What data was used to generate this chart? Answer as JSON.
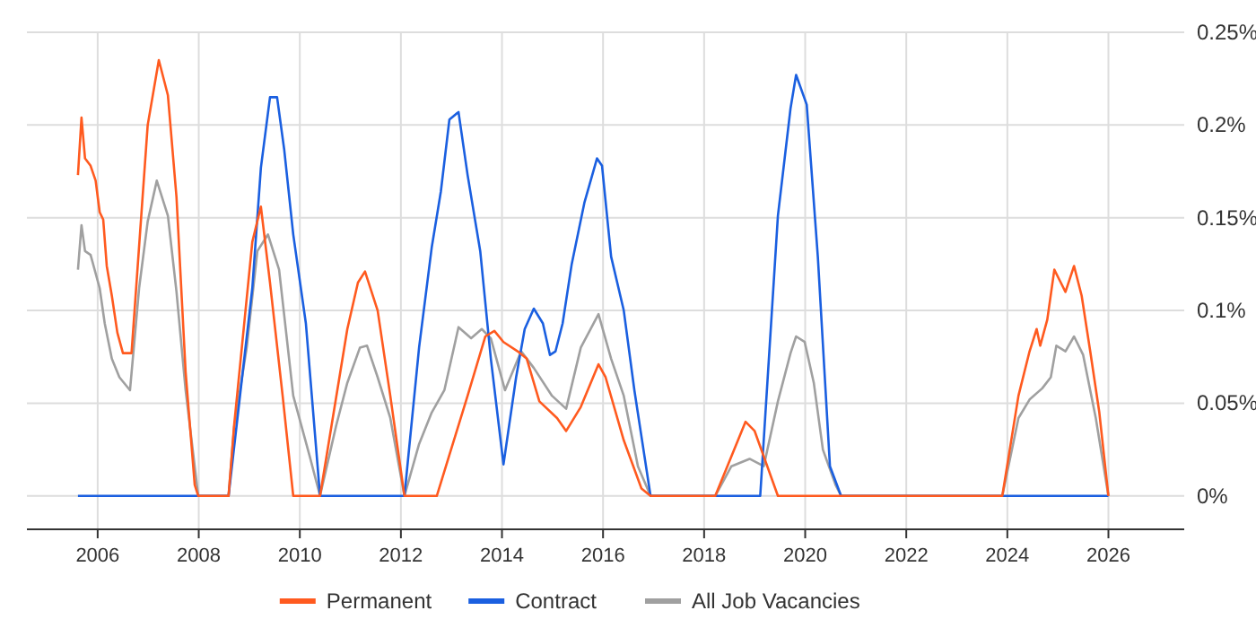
{
  "chart_data": {
    "type": "line",
    "xlim": [
      2004.6,
      2027.5
    ],
    "xticks": [
      2006,
      2008,
      2010,
      2012,
      2014,
      2016,
      2018,
      2020,
      2022,
      2024,
      2026
    ],
    "ylim": [
      -0.018,
      0.25
    ],
    "yticks": [
      {
        "value": 0,
        "label": "0%"
      },
      {
        "value": 0.05,
        "label": "0.05%"
      },
      {
        "value": 0.1,
        "label": "0.1%"
      },
      {
        "value": 0.15,
        "label": "0.15%"
      },
      {
        "value": 0.2,
        "label": "0.2%"
      },
      {
        "value": 0.25,
        "label": "0.25%"
      }
    ],
    "grid": true,
    "legend": "bottom",
    "marker": "none",
    "line_style": "solid",
    "series": [
      {
        "name": "Permanent",
        "color": "#ff5a1f",
        "x": [
          2005.61,
          2005.68,
          2005.75,
          2005.86,
          2005.96,
          2006.04,
          2006.11,
          2006.18,
          2006.28,
          2006.39,
          2006.5,
          2006.67,
          2006.99,
          2007.21,
          2007.39,
          2007.56,
          2007.74,
          2007.92,
          2007.99,
          2008.59,
          2008.7,
          2009.06,
          2009.23,
          2009.41,
          2009.66,
          2009.87,
          2010.4,
          2010.94,
          2011.15,
          2011.29,
          2011.54,
          2011.79,
          2012.07,
          2012.71,
          2013.32,
          2013.67,
          2013.85,
          2014.03,
          2014.31,
          2014.49,
          2014.74,
          2015.09,
          2015.27,
          2015.56,
          2015.91,
          2016.05,
          2016.41,
          2016.76,
          2016.94,
          2018.22,
          2018.82,
          2019.0,
          2019.46,
          2023.9,
          2024.22,
          2024.44,
          2024.58,
          2024.65,
          2024.79,
          2024.93,
          2025.04,
          2025.15,
          2025.32,
          2025.47,
          2025.64,
          2025.82,
          2026.0
        ],
        "values": [
          0.173,
          0.204,
          0.182,
          0.178,
          0.17,
          0.153,
          0.149,
          0.124,
          0.108,
          0.088,
          0.077,
          0.077,
          0.2,
          0.235,
          0.216,
          0.161,
          0.067,
          0.006,
          0,
          0,
          0.038,
          0.137,
          0.156,
          0.115,
          0.054,
          0,
          0,
          0.09,
          0.115,
          0.121,
          0.1,
          0.054,
          0,
          0,
          0.054,
          0.086,
          0.089,
          0.083,
          0.078,
          0.074,
          0.051,
          0.042,
          0.035,
          0.048,
          0.071,
          0.064,
          0.03,
          0.004,
          0,
          0,
          0.04,
          0.035,
          0,
          0,
          0.054,
          0.078,
          0.09,
          0.081,
          0.095,
          0.122,
          0.116,
          0.11,
          0.124,
          0.108,
          0.078,
          0.045,
          0
        ]
      },
      {
        "name": "Contract",
        "color": "#1a5fe0",
        "x": [
          2005.61,
          2008.59,
          2009.06,
          2009.23,
          2009.41,
          2009.55,
          2009.69,
          2009.87,
          2010.12,
          2010.4,
          2012.07,
          2012.36,
          2012.61,
          2012.79,
          2012.96,
          2013.14,
          2013.32,
          2013.57,
          2013.78,
          2014.03,
          2014.28,
          2014.45,
          2014.63,
          2014.81,
          2014.95,
          2015.06,
          2015.2,
          2015.38,
          2015.63,
          2015.88,
          2015.98,
          2016.16,
          2016.41,
          2016.62,
          2016.94,
          2019.11,
          2019.46,
          2019.71,
          2019.82,
          2020.03,
          2020.25,
          2020.49,
          2020.71,
          2026.0
        ],
        "values": [
          0,
          0,
          0.112,
          0.177,
          0.215,
          0.215,
          0.187,
          0.141,
          0.093,
          0,
          0,
          0.08,
          0.134,
          0.164,
          0.203,
          0.207,
          0.173,
          0.132,
          0.074,
          0.017,
          0.064,
          0.09,
          0.101,
          0.093,
          0.076,
          0.078,
          0.093,
          0.125,
          0.158,
          0.182,
          0.178,
          0.129,
          0.1,
          0.057,
          0,
          0,
          0.151,
          0.209,
          0.227,
          0.211,
          0.129,
          0.016,
          0,
          0
        ]
      },
      {
        "name": "All Job Vacancies",
        "color": "#a0a0a0",
        "x": [
          2005.61,
          2005.68,
          2005.75,
          2005.86,
          2006.04,
          2006.14,
          2006.28,
          2006.43,
          2006.64,
          2006.82,
          2006.99,
          2007.17,
          2007.39,
          2007.56,
          2007.74,
          2007.99,
          2008.59,
          2008.7,
          2008.95,
          2009.16,
          2009.37,
          2009.59,
          2009.87,
          2010.19,
          2010.4,
          2010.72,
          2010.94,
          2011.19,
          2011.33,
          2011.54,
          2011.79,
          2012.07,
          2012.36,
          2012.61,
          2012.86,
          2013.14,
          2013.39,
          2013.6,
          2013.78,
          2014.06,
          2014.38,
          2014.63,
          2014.99,
          2015.27,
          2015.56,
          2015.91,
          2016.16,
          2016.41,
          2016.69,
          2016.94,
          2018.22,
          2018.54,
          2018.9,
          2019.18,
          2019.46,
          2019.71,
          2019.82,
          2019.99,
          2020.17,
          2020.35,
          2020.6,
          2020.71,
          2023.9,
          2024.22,
          2024.44,
          2024.69,
          2024.86,
          2024.97,
          2025.15,
          2025.32,
          2025.5,
          2025.75,
          2026.0
        ],
        "values": [
          0.122,
          0.146,
          0.132,
          0.13,
          0.112,
          0.093,
          0.074,
          0.064,
          0.057,
          0.112,
          0.148,
          0.17,
          0.151,
          0.11,
          0.057,
          0,
          0,
          0.037,
          0.08,
          0.132,
          0.141,
          0.122,
          0.054,
          0.022,
          0,
          0.038,
          0.061,
          0.08,
          0.081,
          0.064,
          0.042,
          0,
          0.028,
          0.045,
          0.057,
          0.091,
          0.085,
          0.09,
          0.085,
          0.057,
          0.078,
          0.069,
          0.054,
          0.047,
          0.08,
          0.098,
          0.074,
          0.054,
          0.016,
          0,
          0,
          0.016,
          0.02,
          0.016,
          0.051,
          0.077,
          0.086,
          0.083,
          0.061,
          0.025,
          0.006,
          0,
          0,
          0.042,
          0.052,
          0.058,
          0.064,
          0.081,
          0.078,
          0.086,
          0.076,
          0.042,
          0
        ]
      }
    ]
  }
}
